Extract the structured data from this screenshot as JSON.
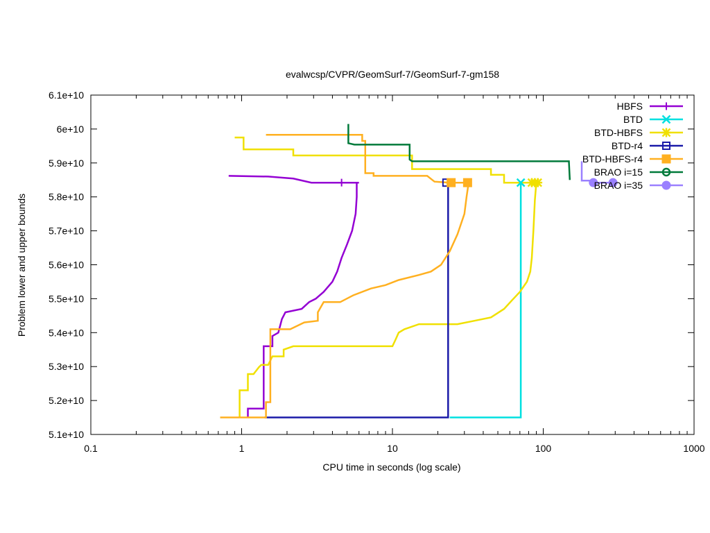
{
  "chart_data": {
    "type": "line",
    "title": "evalwcsp/CVPR/GeomSurf-7/GeomSurf-7-gm158",
    "xlabel": "CPU time in seconds (log scale)",
    "ylabel": "Problem lower and upper bounds",
    "x_scale": "log",
    "xlim": [
      0.1,
      1000
    ],
    "ylim": [
      51000000000,
      61000000000
    ],
    "x_ticks": [
      0.1,
      1,
      10,
      100,
      1000
    ],
    "x_tick_labels": [
      "0.1",
      "1",
      "10",
      "100",
      "1000"
    ],
    "y_ticks": [
      51000000000,
      52000000000,
      53000000000,
      54000000000,
      55000000000,
      56000000000,
      57000000000,
      58000000000,
      59000000000,
      60000000000,
      61000000000
    ],
    "y_tick_labels": [
      "5.1e+10",
      "5.2e+10",
      "5.3e+10",
      "5.4e+10",
      "5.5e+10",
      "5.6e+10",
      "5.7e+10",
      "5.8e+10",
      "5.9e+10",
      "6e+10",
      "6.1e+10"
    ],
    "grid": false,
    "legend_position": "top-right",
    "series": [
      {
        "name": "HBFS",
        "color": "#9400d3",
        "marker": "plus",
        "upper": [
          [
            0.82,
            58620000000
          ],
          [
            1.5,
            58600000000
          ],
          [
            2.2,
            58540000000
          ],
          [
            2.9,
            58420000000
          ],
          [
            4.6,
            58420000000
          ],
          [
            6.0,
            58420000000
          ]
        ],
        "lower": [
          [
            1.1,
            51500000000
          ],
          [
            1.1,
            51760000000
          ],
          [
            1.4,
            51760000000
          ],
          [
            1.4,
            53600000000
          ],
          [
            1.6,
            53600000000
          ],
          [
            1.6,
            53900000000
          ],
          [
            1.75,
            54000000000
          ],
          [
            1.85,
            54400000000
          ],
          [
            1.95,
            54600000000
          ],
          [
            2.5,
            54700000000
          ],
          [
            2.8,
            54900000000
          ],
          [
            3.1,
            55000000000
          ],
          [
            3.5,
            55200000000
          ],
          [
            4.0,
            55500000000
          ],
          [
            4.3,
            55800000000
          ],
          [
            4.6,
            56200000000
          ],
          [
            5.0,
            56600000000
          ],
          [
            5.4,
            57000000000
          ],
          [
            5.7,
            57500000000
          ],
          [
            5.8,
            58000000000
          ],
          [
            5.8,
            58420000000
          ]
        ],
        "markers": [
          [
            4.6,
            58420000000
          ]
        ]
      },
      {
        "name": "BTD",
        "color": "#00e0e0",
        "marker": "x",
        "upper": [
          [
            71,
            58420000000
          ]
        ],
        "lower": [
          [
            24,
            51500000000
          ],
          [
            71,
            51500000000
          ],
          [
            71,
            58420000000
          ]
        ],
        "markers": [
          [
            71,
            58420000000
          ]
        ]
      },
      {
        "name": "BTD-HBFS",
        "color": "#f0e000",
        "marker": "star",
        "upper": [
          [
            0.9,
            59750000000
          ],
          [
            1.03,
            59750000000
          ],
          [
            1.03,
            59400000000
          ],
          [
            2.2,
            59400000000
          ],
          [
            2.2,
            59220000000
          ],
          [
            13.5,
            59220000000
          ],
          [
            13.5,
            58820000000
          ],
          [
            45,
            58820000000
          ],
          [
            45,
            58650000000
          ],
          [
            55,
            58650000000
          ],
          [
            55,
            58420000000
          ],
          [
            92,
            58420000000
          ]
        ],
        "lower": [
          [
            0.97,
            51500000000
          ],
          [
            0.97,
            52300000000
          ],
          [
            1.1,
            52300000000
          ],
          [
            1.1,
            52780000000
          ],
          [
            1.2,
            52780000000
          ],
          [
            1.3,
            52980000000
          ],
          [
            1.35,
            53050000000
          ],
          [
            1.5,
            53050000000
          ],
          [
            1.6,
            53300000000
          ],
          [
            1.9,
            53300000000
          ],
          [
            1.9,
            53500000000
          ],
          [
            2.2,
            53600000000
          ],
          [
            10,
            53600000000
          ],
          [
            10.5,
            53800000000
          ],
          [
            11,
            54000000000
          ],
          [
            12,
            54100000000
          ],
          [
            15,
            54250000000
          ],
          [
            27,
            54250000000
          ],
          [
            35,
            54350000000
          ],
          [
            45,
            54450000000
          ],
          [
            55,
            54700000000
          ],
          [
            62,
            54950000000
          ],
          [
            70,
            55200000000
          ],
          [
            78,
            55500000000
          ],
          [
            82,
            55800000000
          ],
          [
            84,
            56200000000
          ],
          [
            86,
            57000000000
          ],
          [
            88,
            57900000000
          ],
          [
            90,
            58420000000
          ]
        ],
        "markers": [
          [
            84,
            58420000000
          ],
          [
            88,
            58420000000
          ],
          [
            92,
            58420000000
          ]
        ]
      },
      {
        "name": "BTD-r4",
        "color": "#1a1aa8",
        "marker": "square-open",
        "upper": [
          [
            22.8,
            58420000000
          ],
          [
            23.4,
            58420000000
          ]
        ],
        "lower": [
          [
            1.42,
            51500000000
          ],
          [
            23.4,
            51500000000
          ],
          [
            23.4,
            58420000000
          ]
        ],
        "markers": [
          [
            22.8,
            58420000000
          ]
        ]
      },
      {
        "name": "BTD-HBFS-r4",
        "color": "#ffb020",
        "marker": "square-filled",
        "upper": [
          [
            1.45,
            59830000000
          ],
          [
            6.3,
            59830000000
          ],
          [
            6.3,
            59650000000
          ],
          [
            6.6,
            59650000000
          ],
          [
            6.6,
            58700000000
          ],
          [
            7.5,
            58700000000
          ],
          [
            7.5,
            58620000000
          ],
          [
            17,
            58620000000
          ],
          [
            19,
            58450000000
          ],
          [
            24,
            58420000000
          ],
          [
            32,
            58420000000
          ]
        ],
        "lower": [
          [
            0.72,
            51500000000
          ],
          [
            1.45,
            51500000000
          ],
          [
            1.45,
            51950000000
          ],
          [
            1.55,
            51950000000
          ],
          [
            1.55,
            54100000000
          ],
          [
            2.1,
            54100000000
          ],
          [
            2.6,
            54300000000
          ],
          [
            3.2,
            54350000000
          ],
          [
            3.2,
            54600000000
          ],
          [
            3.5,
            54900000000
          ],
          [
            4.5,
            54900000000
          ],
          [
            5.5,
            55100000000
          ],
          [
            7.2,
            55300000000
          ],
          [
            9,
            55400000000
          ],
          [
            11,
            55550000000
          ],
          [
            15,
            55700000000
          ],
          [
            18,
            55800000000
          ],
          [
            21,
            56000000000
          ],
          [
            24,
            56400000000
          ],
          [
            27,
            56900000000
          ],
          [
            30,
            57500000000
          ],
          [
            31,
            58000000000
          ],
          [
            32,
            58420000000
          ]
        ],
        "markers": [
          [
            24.5,
            58420000000
          ],
          [
            31.5,
            58420000000
          ]
        ]
      },
      {
        "name": "BRAO i=15",
        "color": "#007a3a",
        "marker": "circle-open",
        "upper": [
          [
            5.1,
            60150000000
          ],
          [
            5.1,
            59580000000
          ],
          [
            5.6,
            59540000000
          ],
          [
            13,
            59540000000
          ],
          [
            13,
            59100000000
          ],
          [
            13.5,
            59050000000
          ],
          [
            148,
            59050000000
          ],
          [
            150,
            58500000000
          ]
        ],
        "lower": [],
        "markers": []
      },
      {
        "name": "BRAO i=35",
        "color": "#9a80ff",
        "marker": "circle-filled",
        "upper": [
          [
            180,
            59050000000
          ],
          [
            180,
            58480000000
          ],
          [
            215,
            58480000000
          ],
          [
            215,
            58420000000
          ],
          [
            300,
            58420000000
          ]
        ],
        "lower": [],
        "markers": [
          [
            215,
            58420000000
          ],
          [
            290,
            58420000000
          ]
        ]
      }
    ]
  }
}
